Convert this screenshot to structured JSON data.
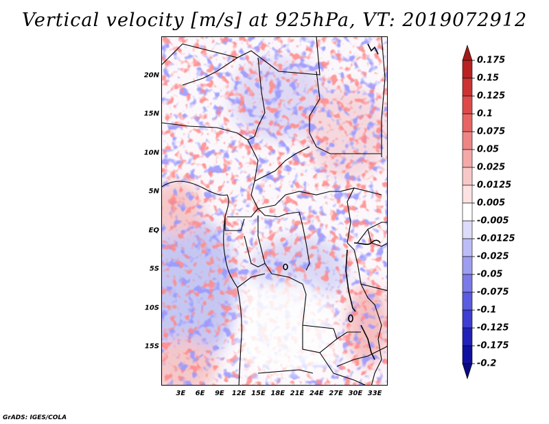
{
  "title": "Vertical velocity [m/s] at 925hPa, VT: 2019072912",
  "credit": "GrADS: IGES/COLA",
  "map": {
    "lat_labels": [
      "20N",
      "15N",
      "10N",
      "5N",
      "EQ",
      "5S",
      "10S",
      "15S"
    ],
    "lat_values": [
      20,
      15,
      10,
      5,
      0,
      -5,
      -10,
      -15
    ],
    "lon_labels": [
      "3E",
      "6E",
      "9E",
      "12E",
      "15E",
      "18E",
      "21E",
      "24E",
      "27E",
      "30E",
      "33E"
    ],
    "lon_values": [
      3,
      6,
      9,
      12,
      15,
      18,
      21,
      24,
      27,
      30,
      33
    ],
    "lon_range": [
      0,
      35
    ],
    "lat_range": [
      -20,
      25
    ]
  },
  "colorbar": {
    "labels": [
      "0.175",
      "0.15",
      "0.125",
      "0.1",
      "0.075",
      "0.05",
      "0.025",
      "0.0125",
      "0.005",
      "-0.005",
      "-0.0125",
      "-0.025",
      "-0.05",
      "-0.075",
      "-0.1",
      "-0.125",
      "-0.175",
      "-0.2"
    ],
    "colors": [
      "#a11a1a",
      "#b82222",
      "#cc3333",
      "#de4a4a",
      "#e86464",
      "#ee8585",
      "#f4a8a8",
      "#f8c8c8",
      "#fce2e2",
      "#ffffff",
      "#dcdcfa",
      "#bcbcf6",
      "#9e9ef0",
      "#7a7ae8",
      "#5c5ce0",
      "#3e3ed2",
      "#2222b8",
      "#1010a0",
      "#0a0a80"
    ]
  }
}
